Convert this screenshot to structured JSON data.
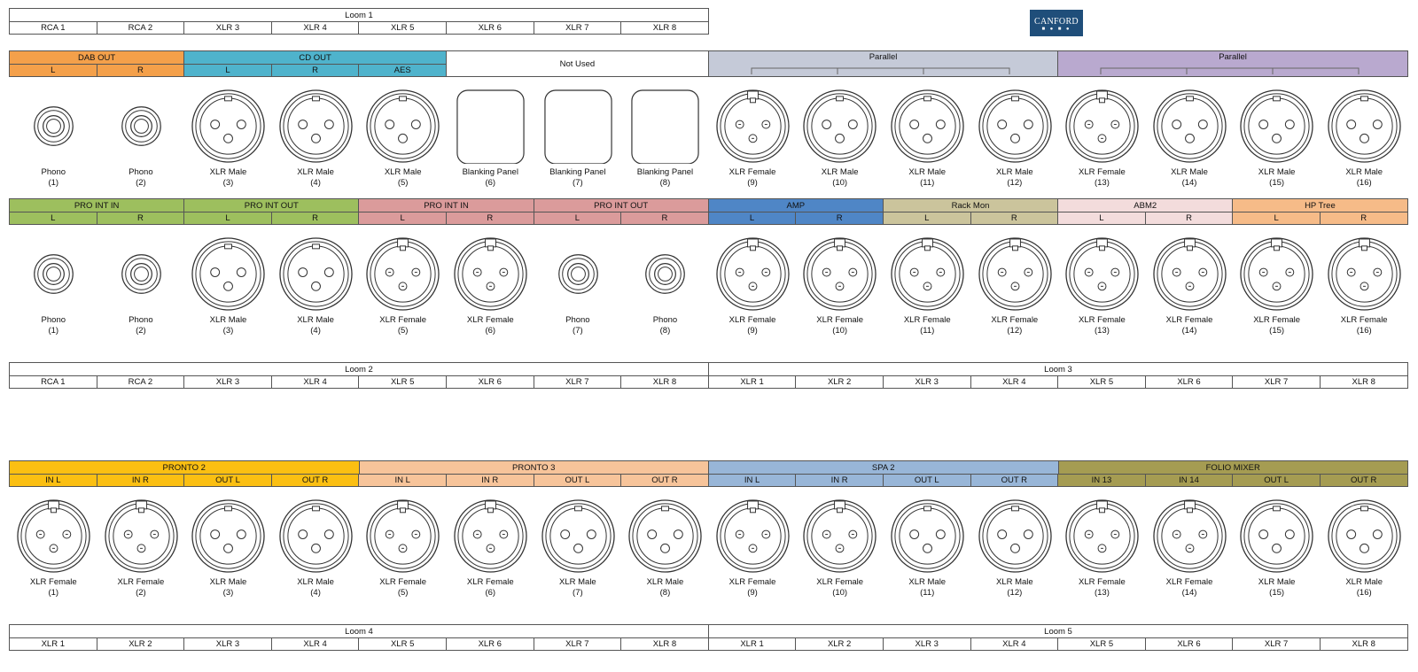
{
  "colors": {
    "dab": "#f4a04a",
    "cd": "#4fb3cc",
    "parallel1": "#c5cad8",
    "parallel2": "#b9a9cf",
    "proin_green": "#9dbf5e",
    "pink": "#db9b9b",
    "amp": "#4f86c6",
    "rackmon": "#cbc49c",
    "abm2": "#f3dcdc",
    "hptree": "#f6bb88",
    "pronto2": "#fbbf12",
    "pronto3": "#f7c49a",
    "spa2": "#98b6d8",
    "folio": "#a59c52",
    "logo": "#1f4e7a"
  },
  "logo": {
    "text": "CANFORD",
    "dots": "■ ● ■ ●"
  },
  "loom1": {
    "title": "Loom 1",
    "cells": [
      "RCA 1",
      "RCA 2",
      "XLR 3",
      "XLR 4",
      "XLR 5",
      "XLR 6",
      "XLR 7",
      "XLR 8"
    ]
  },
  "panel1": {
    "groups": [
      {
        "label": "DAB OUT",
        "subs": [
          "L",
          "R"
        ]
      },
      {
        "label": "CD OUT",
        "subs": [
          "L",
          "R",
          "AES"
        ]
      },
      {
        "label": "Not Used"
      },
      {
        "label": "Parallel"
      },
      {
        "label": "Parallel"
      }
    ],
    "connectors": [
      {
        "type": "Phono",
        "num": "(1)"
      },
      {
        "type": "Phono",
        "num": "(2)"
      },
      {
        "type": "XLR Male",
        "num": "(3)"
      },
      {
        "type": "XLR Male",
        "num": "(4)"
      },
      {
        "type": "XLR Male",
        "num": "(5)"
      },
      {
        "type": "Blanking Panel",
        "num": "(6)"
      },
      {
        "type": "Blanking Panel",
        "num": "(7)"
      },
      {
        "type": "Blanking Panel",
        "num": "(8)"
      },
      {
        "type": "XLR Female",
        "num": "(9)"
      },
      {
        "type": "XLR Male",
        "num": "(10)"
      },
      {
        "type": "XLR Male",
        "num": "(11)"
      },
      {
        "type": "XLR Male",
        "num": "(12)"
      },
      {
        "type": "XLR Female",
        "num": "(13)"
      },
      {
        "type": "XLR Male",
        "num": "(14)"
      },
      {
        "type": "XLR Male",
        "num": "(15)"
      },
      {
        "type": "XLR Male",
        "num": "(16)"
      }
    ]
  },
  "panel2": {
    "groups": [
      {
        "label": "PRO INT IN",
        "subs": [
          "L",
          "R"
        ]
      },
      {
        "label": "PRO INT OUT",
        "subs": [
          "L",
          "R"
        ]
      },
      {
        "label": "PRO INT IN",
        "subs": [
          "L",
          "R"
        ]
      },
      {
        "label": "PRO INT OUT",
        "subs": [
          "L",
          "R"
        ]
      },
      {
        "label": "AMP",
        "subs": [
          "L",
          "R"
        ]
      },
      {
        "label": "Rack Mon",
        "subs": [
          "L",
          "R"
        ]
      },
      {
        "label": "ABM2",
        "subs": [
          "L",
          "R"
        ]
      },
      {
        "label": "HP Tree",
        "subs": [
          "L",
          "R"
        ]
      }
    ],
    "connectors": [
      {
        "type": "Phono",
        "num": "(1)"
      },
      {
        "type": "Phono",
        "num": "(2)"
      },
      {
        "type": "XLR Male",
        "num": "(3)"
      },
      {
        "type": "XLR Male",
        "num": "(4)"
      },
      {
        "type": "XLR Female",
        "num": "(5)"
      },
      {
        "type": "XLR Female",
        "num": "(6)"
      },
      {
        "type": "Phono",
        "num": "(7)"
      },
      {
        "type": "Phono",
        "num": "(8)"
      },
      {
        "type": "XLR Female",
        "num": "(9)"
      },
      {
        "type": "XLR Female",
        "num": "(10)"
      },
      {
        "type": "XLR Female",
        "num": "(11)"
      },
      {
        "type": "XLR Female",
        "num": "(12)"
      },
      {
        "type": "XLR Female",
        "num": "(13)"
      },
      {
        "type": "XLR Female",
        "num": "(14)"
      },
      {
        "type": "XLR Female",
        "num": "(15)"
      },
      {
        "type": "XLR Female",
        "num": "(16)"
      }
    ]
  },
  "loom2": {
    "title": "Loom 2",
    "cells": [
      "RCA 1",
      "RCA 2",
      "XLR 3",
      "XLR 4",
      "XLR 5",
      "XLR 6",
      "XLR 7",
      "XLR 8"
    ]
  },
  "loom3": {
    "title": "Loom 3",
    "cells": [
      "XLR 1",
      "XLR 2",
      "XLR 3",
      "XLR 4",
      "XLR 5",
      "XLR 6",
      "XLR 7",
      "XLR 8"
    ]
  },
  "panel3": {
    "groups": [
      {
        "label": "PRONTO 2",
        "subs": [
          "IN L",
          "IN R",
          "OUT L",
          "OUT R"
        ]
      },
      {
        "label": "PRONTO 3",
        "subs": [
          "IN L",
          "IN R",
          "OUT L",
          "OUT R"
        ]
      },
      {
        "label": "SPA 2",
        "subs": [
          "IN L",
          "IN R",
          "OUT L",
          "OUT R"
        ]
      },
      {
        "label": "FOLIO MIXER",
        "subs": [
          "IN 13",
          "IN 14",
          "OUT L",
          "OUT R"
        ]
      }
    ],
    "connectors": [
      {
        "type": "XLR Female",
        "num": "(1)"
      },
      {
        "type": "XLR Female",
        "num": "(2)"
      },
      {
        "type": "XLR Male",
        "num": "(3)"
      },
      {
        "type": "XLR Male",
        "num": "(4)"
      },
      {
        "type": "XLR Female",
        "num": "(5)"
      },
      {
        "type": "XLR Female",
        "num": "(6)"
      },
      {
        "type": "XLR Male",
        "num": "(7)"
      },
      {
        "type": "XLR Male",
        "num": "(8)"
      },
      {
        "type": "XLR Female",
        "num": "(9)"
      },
      {
        "type": "XLR Female",
        "num": "(10)"
      },
      {
        "type": "XLR Male",
        "num": "(11)"
      },
      {
        "type": "XLR Male",
        "num": "(12)"
      },
      {
        "type": "XLR Female",
        "num": "(13)"
      },
      {
        "type": "XLR Female",
        "num": "(14)"
      },
      {
        "type": "XLR Male",
        "num": "(15)"
      },
      {
        "type": "XLR Male",
        "num": "(16)"
      }
    ]
  },
  "loom4": {
    "title": "Loom 4",
    "cells": [
      "XLR 1",
      "XLR 2",
      "XLR 3",
      "XLR 4",
      "XLR 5",
      "XLR 6",
      "XLR 7",
      "XLR 8"
    ]
  },
  "loom5": {
    "title": "Loom 5",
    "cells": [
      "XLR 1",
      "XLR 2",
      "XLR 3",
      "XLR 4",
      "XLR 5",
      "XLR 6",
      "XLR 7",
      "XLR 8"
    ]
  }
}
